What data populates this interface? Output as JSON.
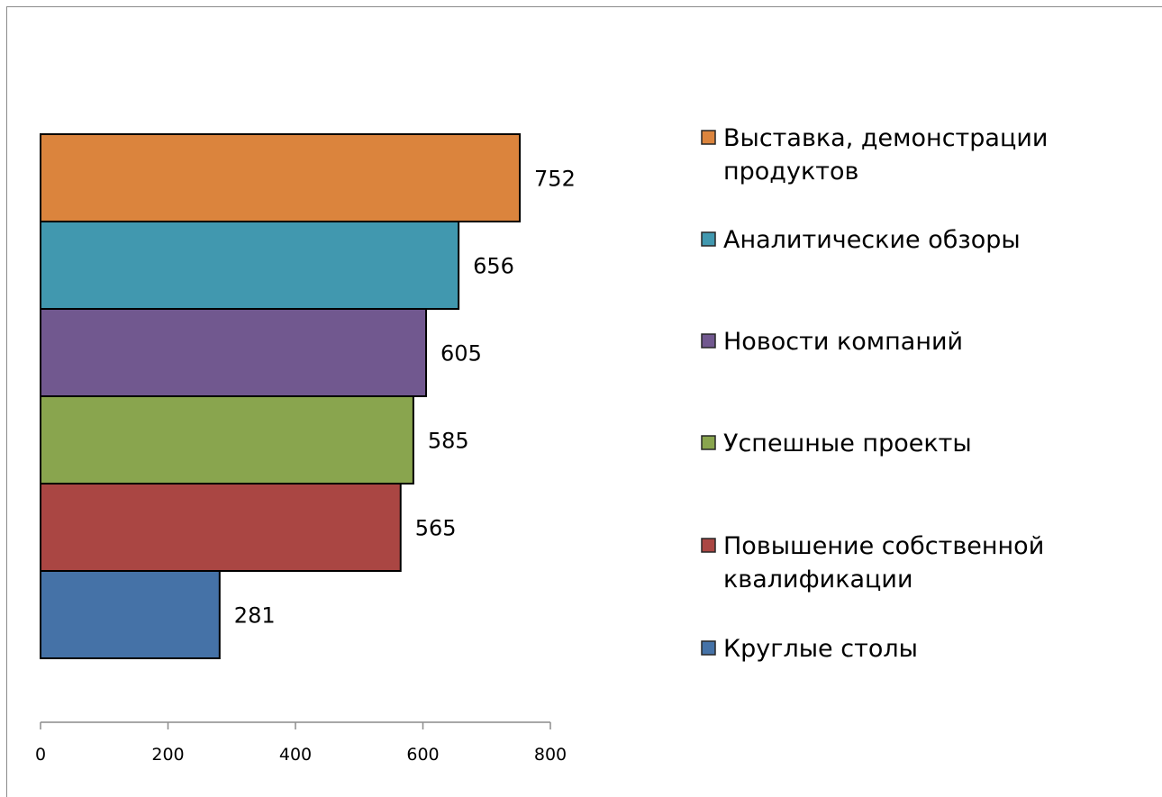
{
  "chart_data": {
    "type": "bar",
    "orientation": "horizontal",
    "categories": [
      "Круглые столы",
      "Повышение собственной квалификации",
      "Успешные проекты",
      "Новости компаний",
      "Аналитические обзоры",
      "Выставка, демонстрации продуктов"
    ],
    "legend_lines": [
      [
        "Круглые столы"
      ],
      [
        "Повышение собственной",
        "квалификации"
      ],
      [
        "Успешные проекты"
      ],
      [
        "Новости компаний"
      ],
      [
        "Аналитические обзоры"
      ],
      [
        "Выставка, демонстрации",
        "продуктов"
      ]
    ],
    "values": [
      281,
      565,
      585,
      605,
      656,
      752
    ],
    "data_labels": [
      "281",
      "565",
      "585",
      "605",
      "656",
      "752"
    ],
    "colors": [
      "#4572a7",
      "#aa4643",
      "#89a54e",
      "#71588f",
      "#4198af",
      "#db843d"
    ],
    "x_ticks": [
      0,
      200,
      400,
      600,
      800
    ],
    "xlim": [
      0,
      800
    ],
    "title": "",
    "xlabel": "",
    "ylabel": "",
    "grid": false,
    "legend_position": "right"
  }
}
